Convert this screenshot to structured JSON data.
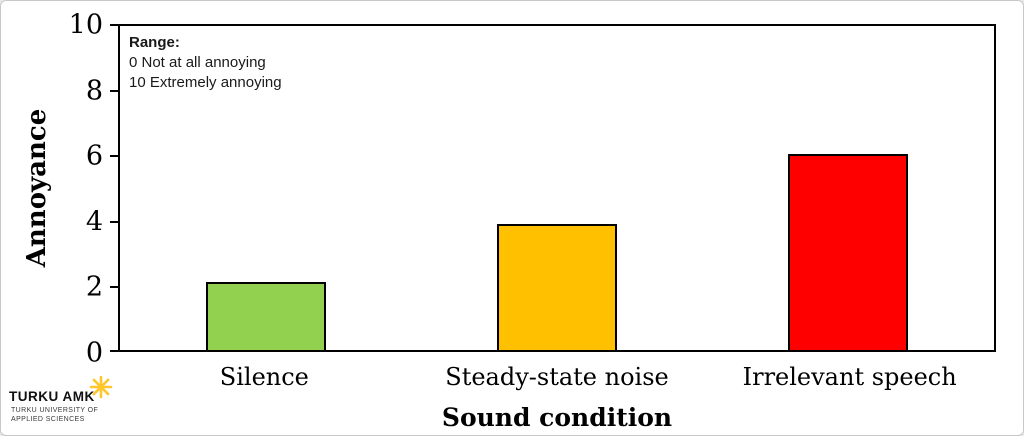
{
  "chart_data": {
    "type": "bar",
    "title": "",
    "categories": [
      "Silence",
      "Steady-state noise",
      "Irrelevant speech"
    ],
    "values": [
      2.1,
      3.85,
      6.0
    ],
    "bar_colors": [
      "#92D050",
      "#FFC000",
      "#FF0000"
    ],
    "bar_border_color": "#000000",
    "xlabel": "Sound condition",
    "ylabel": "Annoyance",
    "ylim": [
      0,
      10
    ],
    "yticks": [
      0,
      2,
      4,
      6,
      8,
      10
    ],
    "grid": false,
    "legend": false,
    "annotation": {
      "heading": "Range:",
      "lines": [
        "0 Not at all annoying",
        "10 Extremely annoying"
      ]
    }
  },
  "logo": {
    "title": "TURKU AMK",
    "subtitle_lines": [
      "TURKU UNIVERSITY OF",
      "APPLIED SCIENCES"
    ],
    "star_color": "#FFC72C"
  }
}
